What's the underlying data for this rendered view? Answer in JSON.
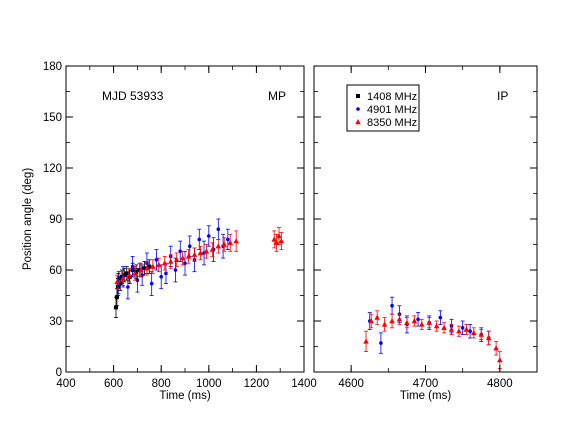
{
  "chart_data": [
    {
      "type": "scatter",
      "panel_label": "MP",
      "annotation": "MJD 53933",
      "xlabel": "Time (ms)",
      "ylabel": "Position angle (deg)",
      "xlim": [
        400,
        1400
      ],
      "ylim": [
        0,
        180
      ],
      "xticks": [
        400,
        600,
        800,
        1000,
        1200,
        1400
      ],
      "yticks": [
        0,
        30,
        60,
        90,
        120,
        150,
        180
      ],
      "series": [
        {
          "name": "1408 MHz",
          "color": "#000000",
          "marker": "square",
          "points": [
            {
              "x": 610,
              "y": 38,
              "err": 6
            },
            {
              "x": 614,
              "y": 44,
              "err": 5
            },
            {
              "x": 618,
              "y": 50,
              "err": 5
            },
            {
              "x": 622,
              "y": 55,
              "err": 4
            },
            {
              "x": 628,
              "y": 52,
              "err": 4
            },
            {
              "x": 635,
              "y": 56,
              "err": 4
            },
            {
              "x": 645,
              "y": 57,
              "err": 4
            },
            {
              "x": 655,
              "y": 58,
              "err": 4
            },
            {
              "x": 668,
              "y": 56,
              "err": 4
            },
            {
              "x": 680,
              "y": 60,
              "err": 4
            },
            {
              "x": 695,
              "y": 59,
              "err": 4
            },
            {
              "x": 710,
              "y": 60,
              "err": 4
            },
            {
              "x": 730,
              "y": 61,
              "err": 4
            },
            {
              "x": 750,
              "y": 62,
              "err": 4
            }
          ]
        },
        {
          "name": "4901 MHz",
          "color": "#0000ff",
          "marker": "circle",
          "points": [
            {
              "x": 620,
              "y": 52,
              "err": 6
            },
            {
              "x": 640,
              "y": 56,
              "err": 6
            },
            {
              "x": 660,
              "y": 50,
              "err": 7
            },
            {
              "x": 680,
              "y": 62,
              "err": 6
            },
            {
              "x": 700,
              "y": 54,
              "err": 7
            },
            {
              "x": 720,
              "y": 57,
              "err": 6
            },
            {
              "x": 740,
              "y": 64,
              "err": 6
            },
            {
              "x": 760,
              "y": 52,
              "err": 7
            },
            {
              "x": 780,
              "y": 66,
              "err": 6
            },
            {
              "x": 800,
              "y": 56,
              "err": 7
            },
            {
              "x": 820,
              "y": 58,
              "err": 6
            },
            {
              "x": 840,
              "y": 68,
              "err": 6
            },
            {
              "x": 860,
              "y": 60,
              "err": 7
            },
            {
              "x": 880,
              "y": 71,
              "err": 6
            },
            {
              "x": 900,
              "y": 64,
              "err": 7
            },
            {
              "x": 920,
              "y": 74,
              "err": 6
            },
            {
              "x": 940,
              "y": 66,
              "err": 7
            },
            {
              "x": 960,
              "y": 78,
              "err": 6
            },
            {
              "x": 980,
              "y": 70,
              "err": 7
            },
            {
              "x": 1000,
              "y": 80,
              "err": 6
            },
            {
              "x": 1020,
              "y": 72,
              "err": 7
            },
            {
              "x": 1040,
              "y": 84,
              "err": 6
            },
            {
              "x": 1060,
              "y": 74,
              "err": 7
            },
            {
              "x": 1080,
              "y": 78,
              "err": 6
            }
          ]
        },
        {
          "name": "8350 MHz",
          "color": "#ff0000",
          "marker": "triangle",
          "points": [
            {
              "x": 615,
              "y": 53,
              "err": 4
            },
            {
              "x": 640,
              "y": 55,
              "err": 4
            },
            {
              "x": 665,
              "y": 57,
              "err": 4
            },
            {
              "x": 690,
              "y": 58,
              "err": 4
            },
            {
              "x": 715,
              "y": 60,
              "err": 4
            },
            {
              "x": 740,
              "y": 61,
              "err": 4
            },
            {
              "x": 765,
              "y": 62,
              "err": 4
            },
            {
              "x": 790,
              "y": 63,
              "err": 4
            },
            {
              "x": 815,
              "y": 64,
              "err": 4
            },
            {
              "x": 840,
              "y": 65,
              "err": 4
            },
            {
              "x": 865,
              "y": 66,
              "err": 4
            },
            {
              "x": 890,
              "y": 67,
              "err": 4
            },
            {
              "x": 915,
              "y": 68,
              "err": 4
            },
            {
              "x": 940,
              "y": 69,
              "err": 4
            },
            {
              "x": 965,
              "y": 70,
              "err": 4
            },
            {
              "x": 990,
              "y": 71,
              "err": 4
            },
            {
              "x": 1015,
              "y": 72,
              "err": 4
            },
            {
              "x": 1040,
              "y": 74,
              "err": 4
            },
            {
              "x": 1065,
              "y": 75,
              "err": 4
            },
            {
              "x": 1090,
              "y": 76,
              "err": 5
            },
            {
              "x": 1115,
              "y": 77,
              "err": 6
            },
            {
              "x": 1275,
              "y": 78,
              "err": 5
            },
            {
              "x": 1285,
              "y": 76,
              "err": 5
            },
            {
              "x": 1295,
              "y": 80,
              "err": 5
            },
            {
              "x": 1305,
              "y": 77,
              "err": 5
            }
          ]
        }
      ]
    },
    {
      "type": "scatter",
      "panel_label": "IP",
      "xlabel": "Time (ms)",
      "xlim": [
        4550,
        4850
      ],
      "ylim": [
        0,
        180
      ],
      "xticks": [
        4600,
        4700,
        4800
      ],
      "legend": {
        "placement": "top-left",
        "entries": [
          "1408 MHz",
          "4901 MHz",
          "8350 MHz"
        ]
      },
      "series": [
        {
          "name": "4901 MHz",
          "color": "#0000ff",
          "marker": "circle",
          "points": [
            {
              "x": 4625,
              "y": 30,
              "err": 5
            },
            {
              "x": 4640,
              "y": 17,
              "err": 6
            },
            {
              "x": 4655,
              "y": 39,
              "err": 5
            },
            {
              "x": 4665,
              "y": 34,
              "err": 5
            },
            {
              "x": 4675,
              "y": 28,
              "err": 5
            },
            {
              "x": 4690,
              "y": 31,
              "err": 4
            },
            {
              "x": 4705,
              "y": 29,
              "err": 4
            },
            {
              "x": 4720,
              "y": 32,
              "err": 4
            },
            {
              "x": 4735,
              "y": 27,
              "err": 4
            },
            {
              "x": 4750,
              "y": 26,
              "err": 4
            },
            {
              "x": 4760,
              "y": 24,
              "err": 4
            },
            {
              "x": 4775,
              "y": 22,
              "err": 4
            },
            {
              "x": 4785,
              "y": 20,
              "err": 4
            }
          ]
        },
        {
          "name": "8350 MHz",
          "color": "#ff0000",
          "marker": "triangle",
          "points": [
            {
              "x": 4620,
              "y": 18,
              "err": 6
            },
            {
              "x": 4627,
              "y": 30,
              "err": 4
            },
            {
              "x": 4635,
              "y": 32,
              "err": 4
            },
            {
              "x": 4645,
              "y": 28,
              "err": 4
            },
            {
              "x": 4655,
              "y": 30,
              "err": 4
            },
            {
              "x": 4665,
              "y": 31,
              "err": 3
            },
            {
              "x": 4675,
              "y": 29,
              "err": 3
            },
            {
              "x": 4685,
              "y": 30,
              "err": 3
            },
            {
              "x": 4695,
              "y": 28,
              "err": 3
            },
            {
              "x": 4705,
              "y": 29,
              "err": 3
            },
            {
              "x": 4715,
              "y": 27,
              "err": 3
            },
            {
              "x": 4725,
              "y": 26,
              "err": 3
            },
            {
              "x": 4735,
              "y": 25,
              "err": 3
            },
            {
              "x": 4745,
              "y": 24,
              "err": 3
            },
            {
              "x": 4755,
              "y": 25,
              "err": 3
            },
            {
              "x": 4765,
              "y": 23,
              "err": 3
            },
            {
              "x": 4775,
              "y": 22,
              "err": 3
            },
            {
              "x": 4785,
              "y": 20,
              "err": 4
            },
            {
              "x": 4795,
              "y": 14,
              "err": 4
            },
            {
              "x": 4800,
              "y": 7,
              "err": 5
            }
          ]
        }
      ]
    }
  ]
}
